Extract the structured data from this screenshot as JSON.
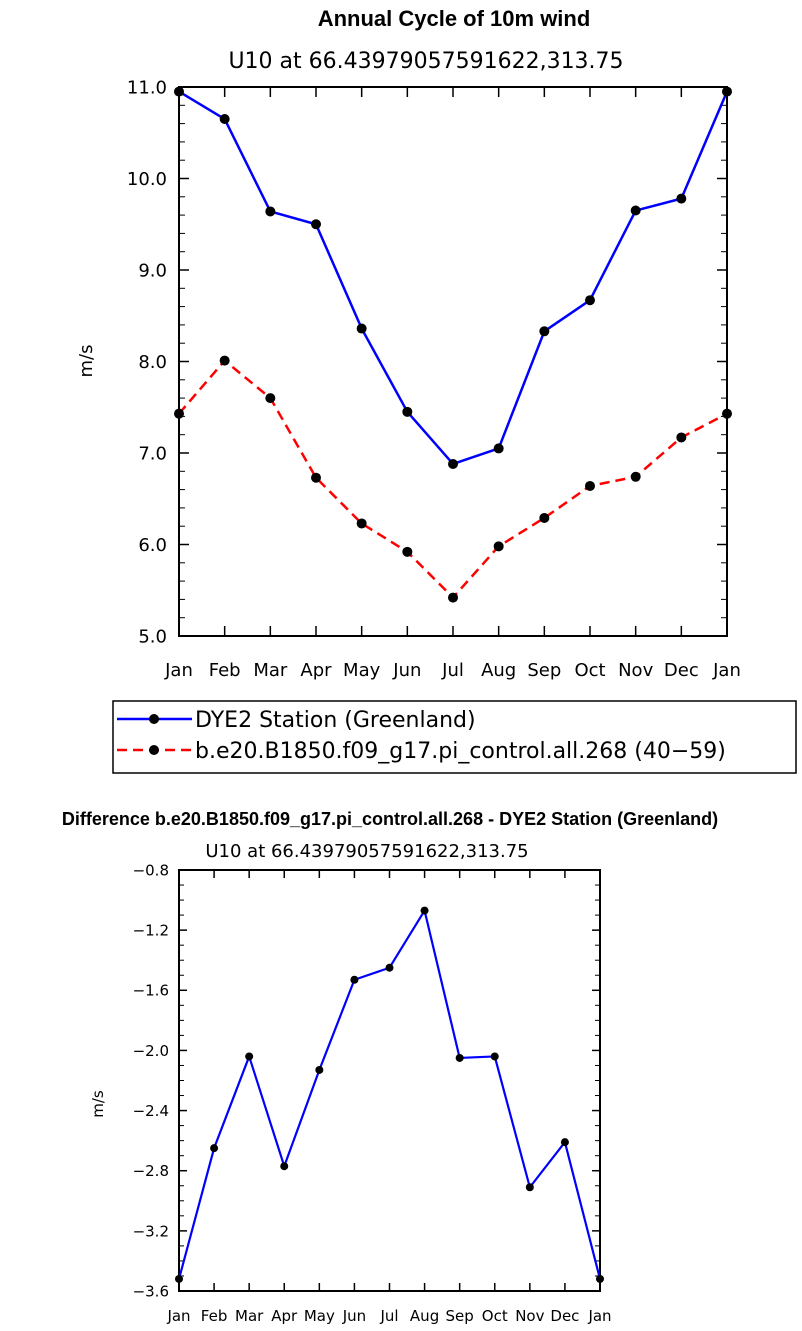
{
  "chart_data": [
    {
      "type": "line",
      "title": "Annual Cycle of 10m wind",
      "subtitle": "U10  at  66.43979057591622,313.75",
      "ylabel": "m/s",
      "xlabel": "",
      "categories": [
        "Jan",
        "Feb",
        "Mar",
        "Apr",
        "May",
        "Jun",
        "Jul",
        "Aug",
        "Sep",
        "Oct",
        "Nov",
        "Dec",
        "Jan"
      ],
      "ylim": [
        5.0,
        11.0
      ],
      "yticks": [
        5.0,
        6.0,
        7.0,
        8.0,
        9.0,
        10.0,
        11.0
      ],
      "ytick_labels": [
        "5.0",
        "6.0",
        "7.0",
        "8.0",
        "9.0",
        "10.0",
        "11.0"
      ],
      "series": [
        {
          "name": "DYE2 Station (Greenland)",
          "color": "#0000ff",
          "dash": "solid",
          "values": [
            10.95,
            10.65,
            9.64,
            9.5,
            8.36,
            7.45,
            6.88,
            7.05,
            8.33,
            8.67,
            9.65,
            9.78,
            10.95
          ]
        },
        {
          "name": "b.e20.B1850.f09_g17.pi_control.all.268 (40−59)",
          "color": "#ff0000",
          "dash": "dashed",
          "values": [
            7.43,
            8.01,
            7.6,
            6.73,
            6.23,
            5.92,
            5.42,
            5.98,
            6.29,
            6.64,
            6.74,
            7.17,
            7.43
          ]
        }
      ],
      "legend": [
        {
          "label": "DYE2 Station (Greenland)",
          "color": "#0000ff",
          "dash": "solid"
        },
        {
          "label": "b.e20.B1850.f09_g17.pi_control.all.268 (40−59)",
          "color": "#ff0000",
          "dash": "dashed"
        }
      ]
    },
    {
      "type": "line",
      "title": "Difference b.e20.B1850.f09_g17.pi_control.all.268 - DYE2 Station (Greenland)",
      "subtitle": "U10  at  66.43979057591622,313.75",
      "ylabel": "m/s",
      "xlabel": "",
      "categories": [
        "Jan",
        "Feb",
        "Mar",
        "Apr",
        "May",
        "Jun",
        "Jul",
        "Aug",
        "Sep",
        "Oct",
        "Nov",
        "Dec",
        "Jan"
      ],
      "ylim": [
        -3.6,
        -0.8
      ],
      "yticks": [
        -3.6,
        -3.2,
        -2.8,
        -2.4,
        -2.0,
        -1.6,
        -1.2,
        -0.8
      ],
      "ytick_labels": [
        "−3.6",
        "−3.2",
        "−2.8",
        "−2.4",
        "−2.0",
        "−1.6",
        "−1.2",
        "−0.8"
      ],
      "series": [
        {
          "name": "Difference",
          "color": "#0000ff",
          "dash": "solid",
          "values": [
            -3.52,
            -2.65,
            -2.04,
            -2.77,
            -2.13,
            -1.53,
            -1.45,
            -1.07,
            -2.05,
            -2.04,
            -2.91,
            -2.61,
            -3.52
          ]
        }
      ]
    }
  ]
}
